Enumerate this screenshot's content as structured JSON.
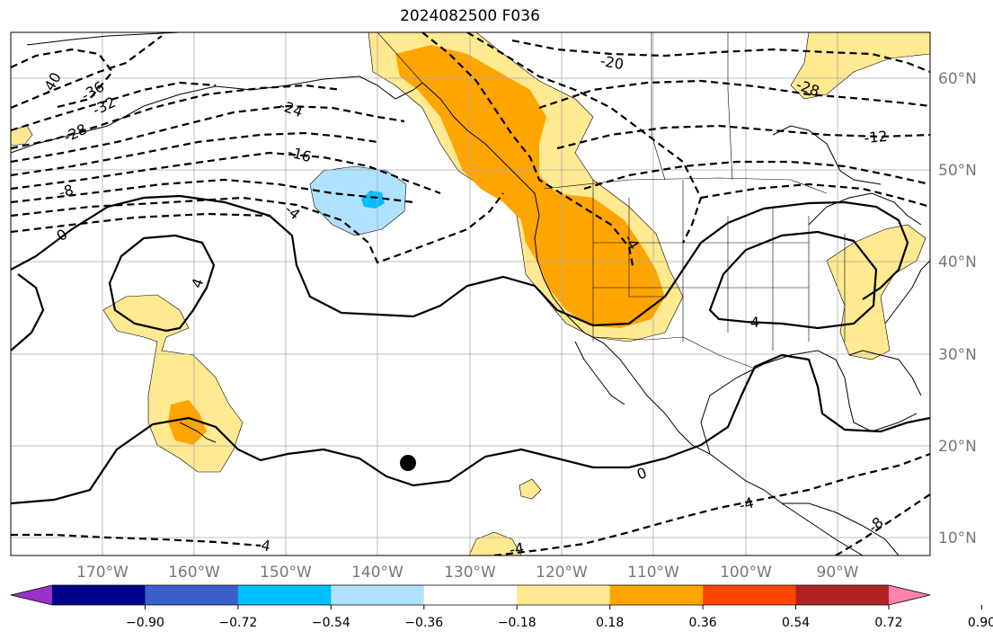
{
  "title": "2024082500 F036",
  "lat_labels": [
    "60°N",
    "50°N",
    "40°N",
    "30°N",
    "20°N",
    "10°N"
  ],
  "lon_labels": [
    "170°W",
    "160°W",
    "150°W",
    "140°W",
    "130°W",
    "120°W",
    "110°W",
    "100°W",
    "90°W"
  ],
  "colorbar": {
    "ticks": [
      "−0.90",
      "−0.72",
      "−0.54",
      "−0.36",
      "−0.18",
      "0.18",
      "0.36",
      "0.54",
      "0.72",
      "0.90"
    ],
    "colors": [
      "#9932cc",
      "#00008b",
      "#3a5fcd",
      "#00bfff",
      "#b0e2ff",
      "#ffffff",
      "#ffe991",
      "#ffa500",
      "#ff4500",
      "#b22222",
      "#ff82ab"
    ]
  },
  "contour_labels": {
    "c1": "-40",
    "c2": "-36",
    "c3": "-32",
    "c4": "-28",
    "c5": "-24",
    "c6": "-20",
    "c7": "-16",
    "c8": "-12",
    "c9": "-8",
    "c10": "-4",
    "c11": "0",
    "c12": "4",
    "c13": "-28",
    "c14": "4",
    "c15": "0",
    "c16": "-4",
    "c17": "-4",
    "c18": "-4",
    "c19": "-4",
    "c20": "-8"
  },
  "colors": {
    "light_yellow": "#ffe991",
    "orange": "#ffa500",
    "light_blue": "#b0e2ff",
    "blue": "#00bfff",
    "grid": "#aaaaaa"
  }
}
